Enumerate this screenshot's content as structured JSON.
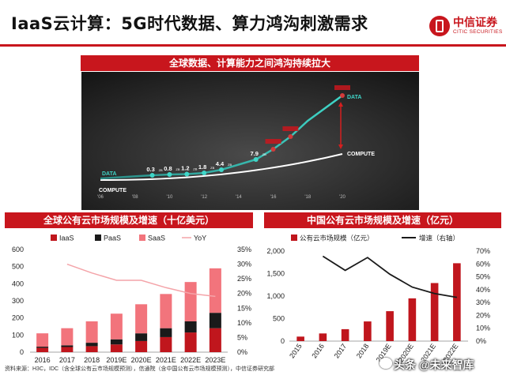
{
  "header": {
    "title": "IaaS云计算：5G时代数据、算力鸿沟刺激需求",
    "logo_cn": "中信证券",
    "logo_en": "CITIC SECURITIES",
    "accent": "#c8161d"
  },
  "top_panel": {
    "title": "全球数据、计算能力之间鸿沟持续拉大",
    "x_ticks": [
      "'06",
      "'08",
      "'10",
      "'12",
      "'14",
      "'16",
      "'18",
      "'20"
    ],
    "data_label": "DATA",
    "compute_label": "COMPUTE",
    "data_points": [
      {
        "year": 2009,
        "label": "0.3",
        "unit": "ZB"
      },
      {
        "year": 2010,
        "label": "0.8",
        "unit": "ZB"
      },
      {
        "year": 2011,
        "label": "1.2",
        "unit": "ZB"
      },
      {
        "year": 2012,
        "label": "1.8",
        "unit": "ZB"
      },
      {
        "year": 2013,
        "label": "4.4",
        "unit": "ZB"
      },
      {
        "year": 2015,
        "label": "7.9",
        "unit": "ZB"
      },
      {
        "year": 2016,
        "label": "",
        "unit": "ZB"
      },
      {
        "year": 2017,
        "label": "",
        "unit": "ZB"
      },
      {
        "year": 2020,
        "label": "",
        "unit": "ZB"
      }
    ]
  },
  "chart_data": [
    {
      "type": "bar",
      "title": "全球公有云市场规模及增速（十亿美元）",
      "categories": [
        "2016",
        "2017",
        "2018",
        "2019E",
        "2020E",
        "2021E",
        "2022E",
        "2023E"
      ],
      "stacked": true,
      "series": [
        {
          "name": "IaaS",
          "color": "#c0161d",
          "values": [
            25,
            30,
            35,
            45,
            65,
            88,
            115,
            140
          ]
        },
        {
          "name": "PaaS",
          "color": "#1a1a1a",
          "values": [
            7,
            10,
            20,
            30,
            45,
            52,
            65,
            90
          ]
        },
        {
          "name": "SaaS",
          "color": "#f2747c",
          "values": [
            78,
            100,
            125,
            150,
            170,
            200,
            230,
            260
          ]
        }
      ],
      "line": {
        "name": "YoY",
        "color": "#f4a4a9",
        "axis": "right",
        "values": [
          null,
          30,
          27,
          24.5,
          24.5,
          22,
          20,
          19
        ]
      },
      "ylim": [
        0,
        600
      ],
      "y_ticks": [
        0,
        100,
        200,
        300,
        400,
        500,
        600
      ],
      "y2lim": [
        0,
        35
      ],
      "y2_ticks": [
        "0%",
        "5%",
        "10%",
        "15%",
        "20%",
        "25%",
        "30%",
        "35%"
      ],
      "legend": "top"
    },
    {
      "type": "bar",
      "title": "中国公有云市场规模及增速（亿元）",
      "categories": [
        "2015",
        "2016",
        "2017",
        "2018",
        "2019E",
        "2020E",
        "2021E",
        "2022E"
      ],
      "series": [
        {
          "name": "公有云市场规模（亿元）",
          "color": "#c0161d",
          "values": [
            100,
            170,
            265,
            437,
            665,
            950,
            1290,
            1730
          ]
        }
      ],
      "line": {
        "name": "增速（右轴）",
        "color": "#1a1a1a",
        "axis": "right",
        "values": [
          null,
          66,
          55,
          65,
          52,
          42,
          37,
          34
        ]
      },
      "ylim": [
        0,
        2000
      ],
      "y_ticks": [
        "0",
        "500",
        "1,000",
        "1,500",
        "2,000"
      ],
      "y2lim": [
        0,
        70
      ],
      "y2_ticks": [
        "0%",
        "10%",
        "20%",
        "30%",
        "40%",
        "50%",
        "60%",
        "70%"
      ],
      "legend": "top"
    }
  ],
  "footer": {
    "source": "资料来源：H3C，IDC（含全球公有云市场规模预测），信通院（含中国公有云市场规模预测），中信证券研究部",
    "watermark": "头条 @未来智库"
  }
}
